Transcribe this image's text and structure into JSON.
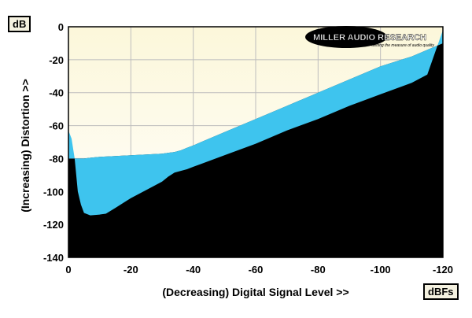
{
  "chart_data": {
    "type": "area",
    "title": "",
    "xlabel": "(Decreasing) Digital Signal Level >>",
    "ylabel": "(Increasing) Distortion >>",
    "x_unit": "dBFs",
    "y_unit": "dB",
    "xlim": [
      0,
      -120
    ],
    "ylim": [
      -140,
      0
    ],
    "x_ticks": [
      0,
      -20,
      -40,
      -60,
      -80,
      -100,
      -120
    ],
    "y_ticks": [
      0,
      -20,
      -40,
      -60,
      -80,
      -100,
      -120,
      -140
    ],
    "x_tick_labels": [
      "0",
      "-20",
      "-40",
      "-60",
      "-80",
      "-100",
      "-120"
    ],
    "y_tick_labels": [
      "0",
      "-20",
      "-40",
      "-60",
      "-80",
      "-100",
      "-120",
      "-140"
    ],
    "grid": true,
    "band": {
      "color": "#3ec4ee",
      "upper": {
        "x": [
          0,
          -1,
          -2,
          -3,
          -4,
          -5,
          -7,
          -10,
          -12,
          -15,
          -20,
          -25,
          -30,
          -32,
          -34,
          -36,
          -38,
          -40,
          -50,
          -60,
          -70,
          -80,
          -90,
          -100,
          -110,
          -115,
          -120
        ],
        "y": [
          -63,
          -68,
          -80,
          -100,
          -108,
          -113,
          -114.5,
          -114,
          -113.5,
          -110,
          -104,
          -99,
          -94,
          -91,
          -88.5,
          -87.5,
          -86.5,
          -85,
          -78,
          -71,
          -63,
          -56,
          -48,
          -41,
          -34,
          -29,
          -2
        ]
      },
      "lower": {
        "x": [
          -120,
          -110,
          -100,
          -90,
          -80,
          -70,
          -60,
          -50,
          -40,
          -38,
          -36,
          -34,
          -32,
          -30,
          -25,
          -20,
          -15,
          -10,
          -7,
          -5,
          0
        ],
        "y": [
          -10,
          -18,
          -24,
          -32,
          -40,
          -48,
          -56,
          -64,
          -72,
          -73.5,
          -75,
          -76,
          -76.5,
          -77,
          -77.5,
          -78,
          -78.5,
          -79,
          -79.5,
          -80,
          -80
        ]
      }
    },
    "shading": {
      "above_color_top": "#fcf7da",
      "above_color_bottom": "#ffffff",
      "below_color": "#000000"
    }
  },
  "logo": {
    "brand": "MILLER AUDIO RESEARCH",
    "tagline": "Setting the measure of audio quality"
  }
}
